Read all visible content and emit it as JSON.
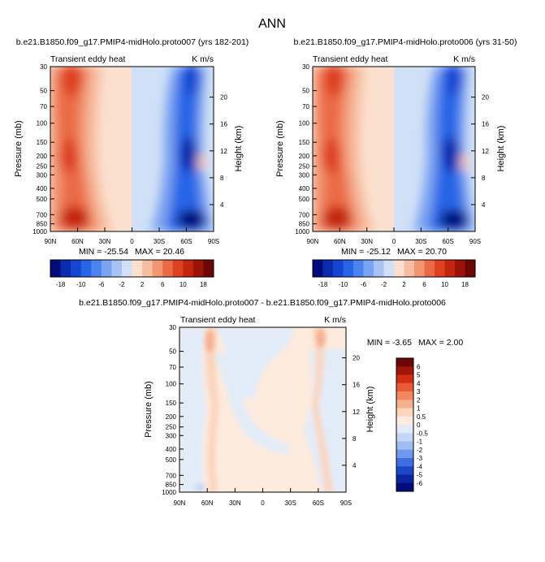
{
  "figure": {
    "title": "ANN"
  },
  "chart_data": [
    {
      "type": "heatmap",
      "panel": "top-left",
      "title": "b.e21.B1850.f09_g17.PMIP4-midHolo.proto007 (yrs 182-201)",
      "subtitle_left": "Transient eddy heat",
      "subtitle_right": "K m/s",
      "ylabel": "Pressure (mb)",
      "ylabel_right": "Height (km)",
      "x_ticks": [
        "90N",
        "60N",
        "30N",
        "0",
        "30S",
        "60S",
        "90S"
      ],
      "y_ticks": [
        "30",
        "50",
        "70",
        "100",
        "150",
        "200",
        "250",
        "300",
        "400",
        "500",
        "700",
        "850",
        "1000"
      ],
      "y_right_ticks": [
        "20",
        "16",
        "12",
        "8",
        "4"
      ],
      "min_label": "MIN = -25.54",
      "max_label": "MAX =  20.46",
      "min": -25.54,
      "max": 20.46,
      "colorbar": {
        "orientation": "horizontal",
        "labels": [
          "-18",
          "-10",
          "-6",
          "-2",
          "2",
          "6",
          "10",
          "18"
        ]
      }
    },
    {
      "type": "heatmap",
      "panel": "top-right",
      "title": "b.e21.B1850.f09_g17.PMIP4-midHolo.proto006 (yrs 31-50)",
      "subtitle_left": "Transient eddy heat",
      "subtitle_right": "K m/s",
      "ylabel": "Pressure (mb)",
      "ylabel_right": "Height (km)",
      "x_ticks": [
        "90N",
        "60N",
        "30N",
        "0",
        "30S",
        "60S",
        "90S"
      ],
      "y_ticks": [
        "30",
        "50",
        "70",
        "100",
        "150",
        "200",
        "250",
        "300",
        "400",
        "500",
        "700",
        "850",
        "1000"
      ],
      "y_right_ticks": [
        "20",
        "16",
        "12",
        "8",
        "4"
      ],
      "min_label": "MIN = -25.12",
      "max_label": "MAX =  20.70",
      "min": -25.12,
      "max": 20.7,
      "colorbar": {
        "orientation": "horizontal",
        "labels": [
          "-18",
          "-10",
          "-6",
          "-2",
          "2",
          "6",
          "10",
          "18"
        ]
      }
    },
    {
      "type": "heatmap",
      "panel": "bottom",
      "title": "b.e21.B1850.f09_g17.PMIP4-midHolo.proto007 - b.e21.B1850.f09_g17.PMIP4-midHolo.proto006",
      "subtitle_left": "Transient eddy heat",
      "subtitle_right": "K m/s",
      "ylabel": "Pressure (mb)",
      "ylabel_right": "Height (km)",
      "x_ticks": [
        "90N",
        "60N",
        "30N",
        "0",
        "30S",
        "60S",
        "90S"
      ],
      "y_ticks": [
        "30",
        "50",
        "70",
        "100",
        "150",
        "200",
        "250",
        "300",
        "400",
        "500",
        "700",
        "850",
        "1000"
      ],
      "y_right_ticks": [
        "20",
        "16",
        "12",
        "8",
        "4"
      ],
      "min_label": "MIN =  -3.65",
      "max_label": "MAX =   2.00",
      "min": -3.65,
      "max": 2.0,
      "colorbar": {
        "orientation": "vertical",
        "labels": [
          "6",
          "5",
          "4",
          "3",
          "2",
          "1",
          "0.5",
          "0",
          "-0.5",
          "-1",
          "-2",
          "-3",
          "-4",
          "-5",
          "-6"
        ]
      }
    }
  ],
  "colors": {
    "diverging": [
      "#000c7c",
      "#0a2bad",
      "#1545d2",
      "#2665e6",
      "#4b84ee",
      "#7aa3f2",
      "#a7c2f4",
      "#d0e0f6",
      "#fbe0cf",
      "#f7bda0",
      "#f29571",
      "#ea6a45",
      "#dd4120",
      "#c4250e",
      "#9a1208",
      "#6b0704"
    ],
    "diff": [
      "#6b0704",
      "#a3150a",
      "#d22f12",
      "#e95a36",
      "#f2865f",
      "#f7b08e",
      "#fbd5be",
      "#fdebdd",
      "#e2ecf9",
      "#c3d6f6",
      "#9fbcf3",
      "#6f98ee",
      "#3d6fe3",
      "#1b46c8",
      "#0a259f",
      "#000c7c"
    ]
  }
}
